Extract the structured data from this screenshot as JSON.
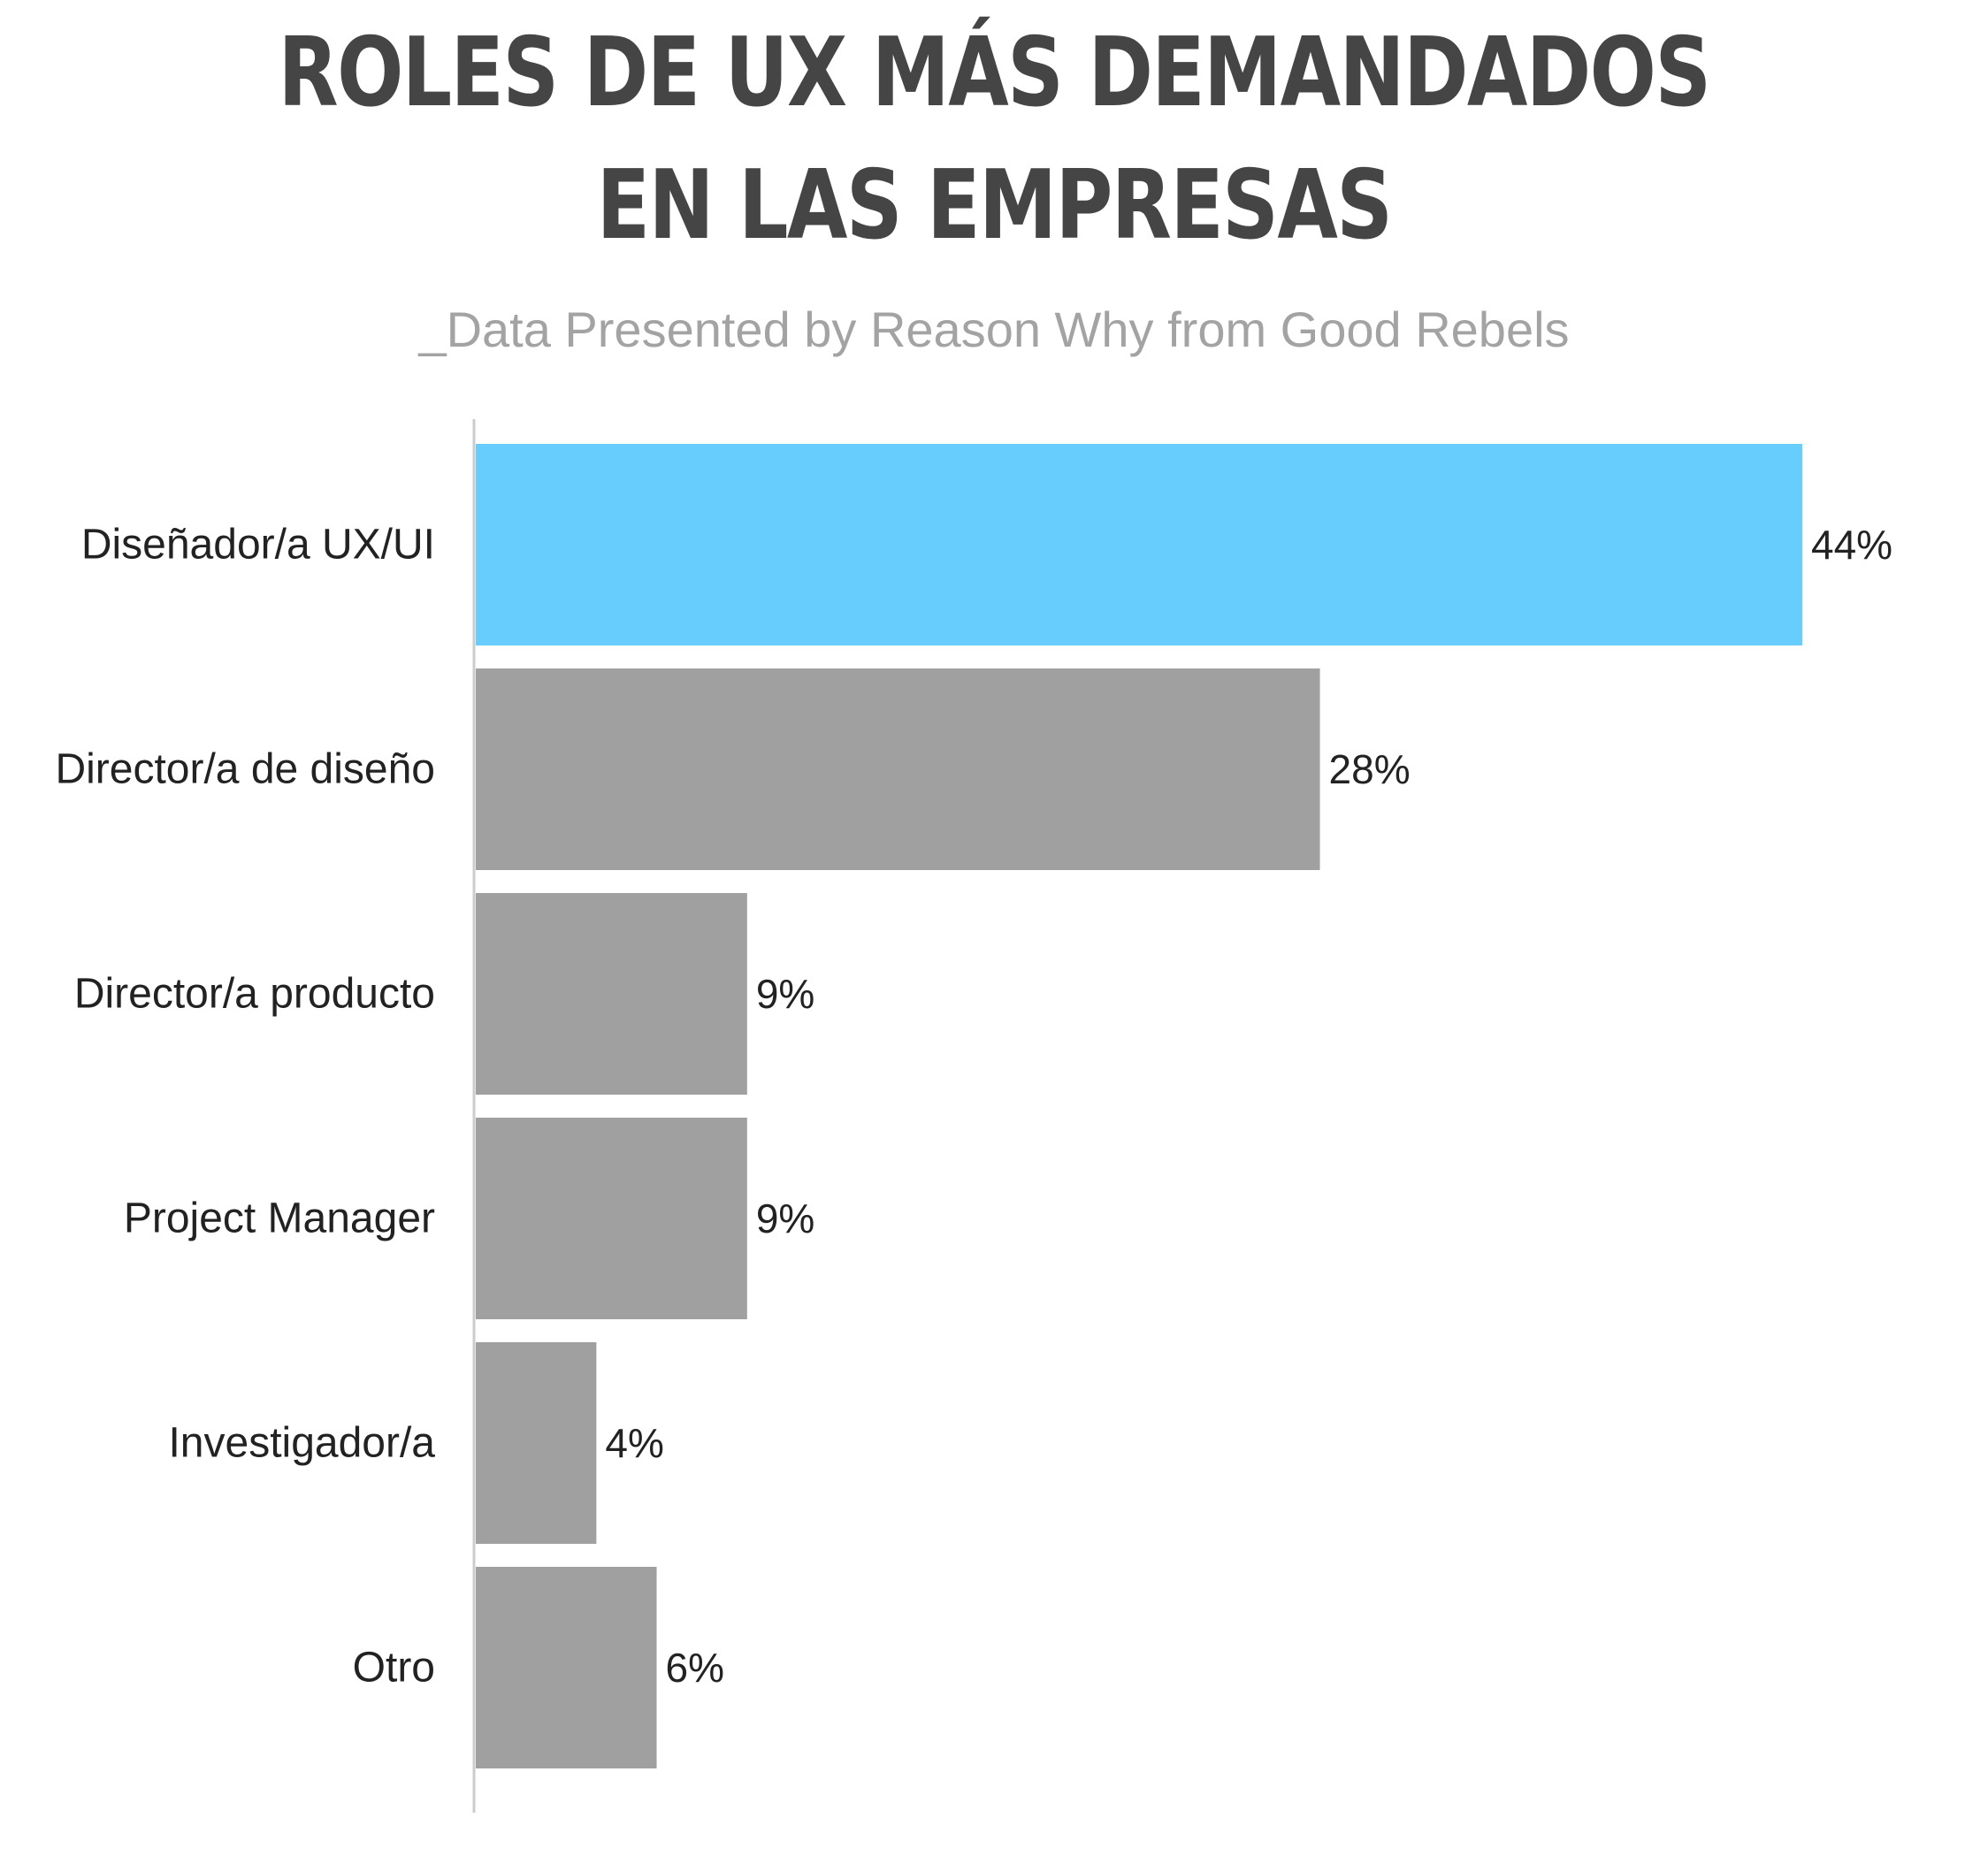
{
  "chart_data": {
    "type": "bar",
    "orientation": "horizontal",
    "title_lines": [
      "ROLES DE UX MÁS DEMANDADOS",
      "EN LAS EMPRESAS"
    ],
    "subtitle": "_Data Presented by Reason Why from Good Rebels",
    "categories": [
      "Diseñador/a UX/UI",
      "Director/a de diseño",
      "Director/a producto",
      "Project Manager",
      "Investigador/a",
      "Otro"
    ],
    "values": [
      44,
      28,
      9,
      9,
      4,
      6
    ],
    "value_labels": [
      "44%",
      "28%",
      "9%",
      "9%",
      "4%",
      "6%"
    ],
    "unit": "%",
    "xlim": [
      0,
      44
    ],
    "grid": false,
    "legend": "none",
    "colors": {
      "highlight": "#66cdfc",
      "bar": "#a0a0a0",
      "axis": "#cccccc",
      "title": "#454545",
      "subtitle": "#a3a3a3",
      "text": "#222222"
    },
    "highlight_index": 0
  }
}
